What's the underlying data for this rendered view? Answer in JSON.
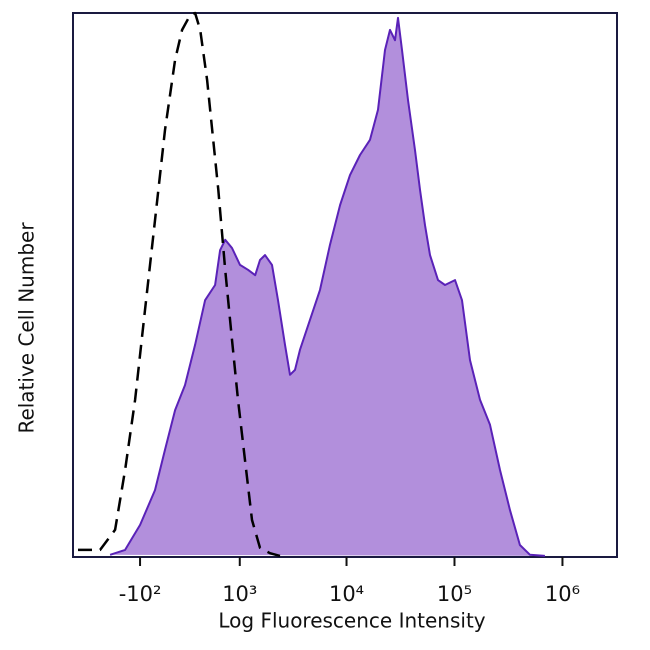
{
  "chart_data": {
    "type": "line",
    "x_label": "Log Fluorescence Intensity",
    "y_label": "Relative Cell Number",
    "xscale": "asinh",
    "xlim": [
      -900,
      3200000
    ],
    "ylim": [
      0,
      100
    ],
    "xticks": [
      {
        "value": -100,
        "label": "-10²"
      },
      {
        "value": 1000,
        "label": "10³"
      },
      {
        "value": 10000,
        "label": "10⁴"
      },
      {
        "value": 100000,
        "label": "10⁵"
      },
      {
        "value": 1000000,
        "label": "10⁶"
      }
    ],
    "series": [
      {
        "color": "#5a22b8",
        "fill": "#b28fdc",
        "dashed": false,
        "x": [
          -357,
          -217,
          -100,
          7,
          78,
          153,
          234,
          327,
          434,
          562,
          635,
          716,
          838,
          1006,
          1201,
          1406,
          1564,
          1742,
          2030,
          2310,
          2686,
          2990,
          3326,
          3703,
          4587,
          5680,
          7030,
          8710,
          10760,
          13330,
          16500,
          19570,
          22700,
          25280,
          28120,
          30000,
          32670,
          37130,
          43100,
          47950,
          53330,
          59330,
          70320,
          81680,
          101100,
          117300,
          139100,
          172200,
          213100,
          263700,
          326400,
          403900,
          500000,
          688400
        ],
        "values": [
          0.4,
          1.3,
          5.9,
          12.3,
          19.7,
          27.0,
          31.6,
          39.0,
          47.2,
          50.0,
          56.4,
          58.3,
          56.8,
          53.7,
          52.8,
          51.8,
          54.6,
          55.5,
          53.7,
          47.2,
          39.0,
          33.5,
          34.4,
          38.1,
          43.6,
          49.1,
          57.4,
          64.7,
          70.2,
          73.9,
          76.7,
          82.2,
          93.2,
          96.9,
          95.0,
          99.1,
          93.2,
          84.0,
          74.8,
          67.5,
          61.0,
          55.5,
          50.9,
          50.0,
          50.9,
          47.2,
          36.2,
          28.9,
          24.3,
          16.0,
          8.6,
          2.2,
          0.4,
          0.2
        ]
      },
      {
        "color": "#000000",
        "dashed": true,
        "x": [
          -803,
          -469,
          -307,
          -217,
          -137,
          -64,
          7,
          78,
          153,
          209,
          279,
          327,
          380,
          458,
          523,
          608,
          716,
          838,
          960,
          1125,
          1313,
          1564,
          1943,
          2409
        ],
        "values": [
          1.3,
          1.3,
          5.0,
          16.0,
          28.9,
          45.4,
          61.9,
          78.5,
          91.4,
          96.9,
          99.6,
          100,
          96.9,
          87.7,
          78.5,
          67.5,
          52.8,
          39.9,
          28.9,
          17.8,
          6.8,
          1.7,
          0.7,
          0.2
        ]
      }
    ]
  }
}
